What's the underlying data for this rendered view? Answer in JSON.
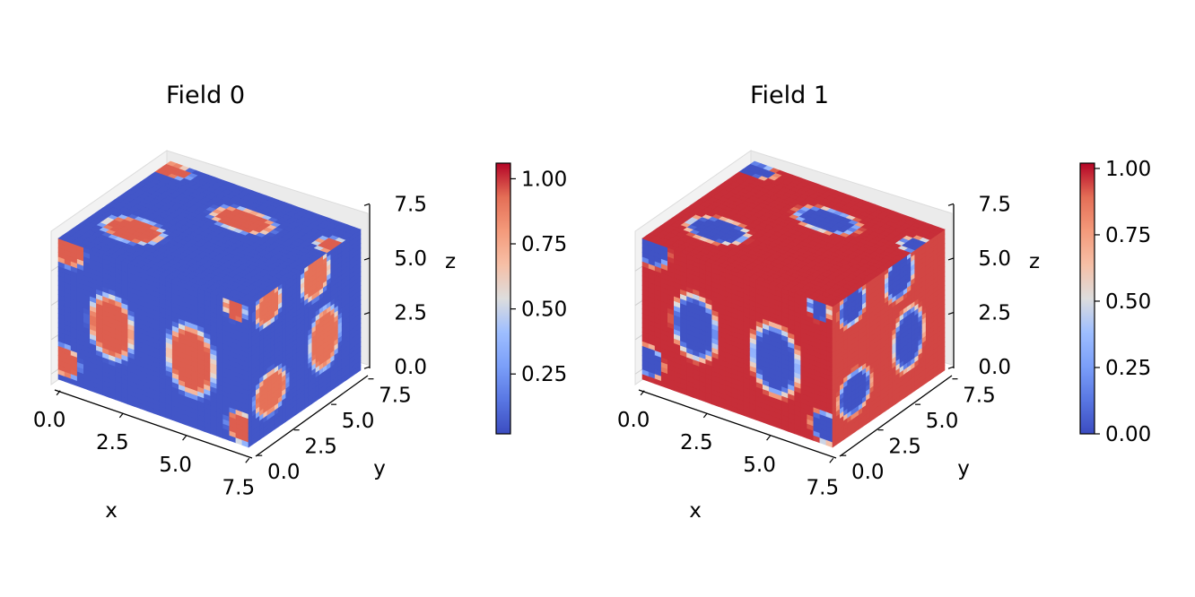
{
  "chart_data": [
    {
      "type": "heatmap",
      "title": "Field 0",
      "xlabel": "x",
      "ylabel": "y",
      "zlabel": "z",
      "x_ticks": [
        "0.0",
        "2.5",
        "5.0",
        "7.5"
      ],
      "y_ticks": [
        "0.0",
        "2.5",
        "5.0",
        "7.5"
      ],
      "z_ticks": [
        "0.0",
        "2.5",
        "5.0",
        "7.5"
      ],
      "xlim": [
        0,
        8
      ],
      "ylim": [
        0,
        8
      ],
      "zlim": [
        0,
        8
      ],
      "colormap": "coolwarm",
      "colorbar_range": [
        0.02,
        1.06
      ],
      "colorbar_ticks": [
        "0.25",
        "0.50",
        "0.75",
        "1.00"
      ],
      "background_value": 0.05,
      "blob_value": 0.95
    },
    {
      "type": "heatmap",
      "title": "Field 1",
      "xlabel": "x",
      "ylabel": "y",
      "zlabel": "z",
      "x_ticks": [
        "0.0",
        "2.5",
        "5.0",
        "7.5"
      ],
      "y_ticks": [
        "0.0",
        "2.5",
        "5.0",
        "7.5"
      ],
      "z_ticks": [
        "0.0",
        "2.5",
        "5.0",
        "7.5"
      ],
      "xlim": [
        0,
        8
      ],
      "ylim": [
        0,
        8
      ],
      "zlim": [
        0,
        8
      ],
      "colormap": "coolwarm",
      "colorbar_range": [
        0.0,
        1.02
      ],
      "colorbar_ticks": [
        "0.00",
        "0.25",
        "0.50",
        "0.75",
        "1.00"
      ],
      "background_value": 0.97,
      "blob_value": 0.02
    }
  ],
  "colors": {
    "low": "#3b4cc0",
    "mid": "#dddddd",
    "high": "#b40426"
  }
}
